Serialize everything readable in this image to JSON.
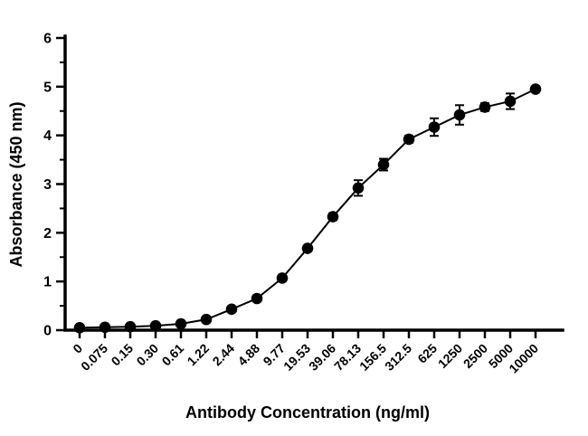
{
  "chart_data": {
    "type": "line",
    "title": "",
    "xlabel": "Antibody Concentration (ng/ml)",
    "ylabel": "Absorbance (450 nm)",
    "categories": [
      "0",
      "0.075",
      "0.15",
      "0.30",
      "0.61",
      "1.22",
      "2.44",
      "4.88",
      "9.77",
      "19.53",
      "39.06",
      "78.13",
      "156.5",
      "312.5",
      "625",
      "1250",
      "2500",
      "5000",
      "10000"
    ],
    "values": [
      0.05,
      0.06,
      0.07,
      0.09,
      0.13,
      0.22,
      0.43,
      0.65,
      1.07,
      1.68,
      2.33,
      2.92,
      3.4,
      3.92,
      4.17,
      4.42,
      4.58,
      4.7,
      4.95
    ],
    "errors": [
      0.02,
      0.02,
      0.02,
      0.02,
      0.03,
      0.03,
      0.04,
      0.04,
      0.05,
      0.05,
      0.07,
      0.16,
      0.12,
      0.07,
      0.18,
      0.2,
      0.08,
      0.16,
      0.05
    ],
    "ylim": [
      0,
      6
    ],
    "y_major_ticks": [
      0,
      1,
      2,
      3,
      4,
      5,
      6
    ],
    "y_minor_step": 0.5,
    "grid": "off",
    "legend": "none",
    "marker_color": "#000000",
    "line_color": "#000000",
    "axis_color": "#000000"
  }
}
